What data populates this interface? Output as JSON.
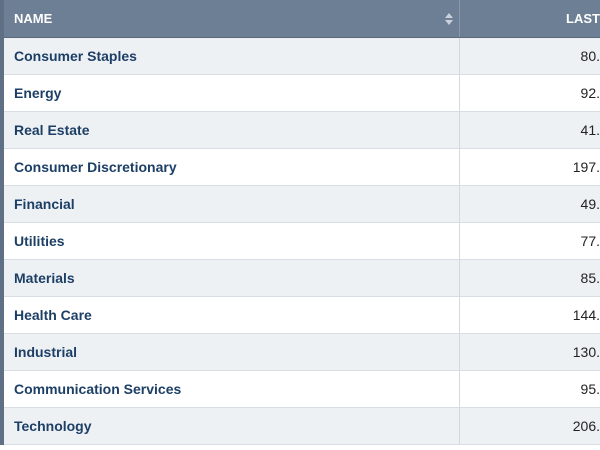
{
  "table": {
    "columns": {
      "name": "NAME",
      "last": "LAST"
    },
    "rows": [
      {
        "name": "Consumer Staples",
        "last": "80."
      },
      {
        "name": "Energy",
        "last": "92."
      },
      {
        "name": "Real Estate",
        "last": "41."
      },
      {
        "name": "Consumer Discretionary",
        "last": "197."
      },
      {
        "name": "Financial",
        "last": "49."
      },
      {
        "name": "Utilities",
        "last": "77."
      },
      {
        "name": "Materials",
        "last": "85."
      },
      {
        "name": "Health Care",
        "last": "144."
      },
      {
        "name": "Industrial",
        "last": "130."
      },
      {
        "name": "Communication Services",
        "last": "95."
      },
      {
        "name": "Technology",
        "last": "206."
      }
    ]
  },
  "icons": {
    "sort": "sort-icon"
  },
  "colors": {
    "header_bg": "#6d7f94",
    "name_text": "#1d3f66",
    "alt_row_bg": "#eef1f4"
  }
}
